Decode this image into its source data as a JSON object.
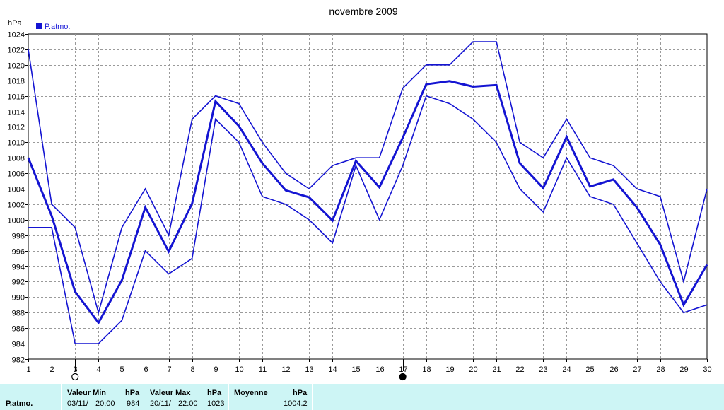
{
  "chart_data": {
    "type": "line",
    "title": "novembre 2009",
    "ylabel": "hPa",
    "xlim": [
      1,
      30
    ],
    "ylim": [
      982,
      1024
    ],
    "y_ticks": [
      982,
      984,
      986,
      988,
      990,
      992,
      994,
      996,
      998,
      1000,
      1002,
      1004,
      1006,
      1008,
      1010,
      1012,
      1014,
      1016,
      1018,
      1020,
      1022,
      1024
    ],
    "x_ticks": [
      1,
      2,
      3,
      4,
      5,
      6,
      7,
      8,
      9,
      10,
      11,
      12,
      13,
      14,
      15,
      16,
      17,
      18,
      19,
      20,
      21,
      22,
      23,
      24,
      25,
      26,
      27,
      28,
      29,
      30
    ],
    "grid": true,
    "legend": {
      "label": "P.atmo.",
      "position": "top-left"
    },
    "color": "#1414d2",
    "series": [
      {
        "name": "P.atmo.",
        "role": "max",
        "x": [
          1,
          2,
          3,
          4,
          5,
          6,
          7,
          8,
          9,
          10,
          11,
          12,
          13,
          14,
          15,
          16,
          17,
          18,
          19,
          20,
          21,
          22,
          23,
          24,
          25,
          26,
          27,
          28,
          29,
          30
        ],
        "values": [
          1022,
          1002,
          999,
          988,
          999,
          1004,
          998,
          1013,
          1016,
          1015,
          1010,
          1006,
          1004,
          1007,
          1008,
          1008,
          1017,
          1020,
          1020,
          1023,
          1023,
          1010,
          1008,
          1013,
          1008,
          1007,
          1004,
          1003,
          992,
          1004
        ]
      },
      {
        "name": "P.atmo.",
        "role": "mean",
        "x": [
          1,
          2,
          3,
          4,
          5,
          6,
          7,
          8,
          9,
          10,
          11,
          12,
          13,
          14,
          15,
          16,
          17,
          18,
          19,
          20,
          21,
          22,
          23,
          24,
          25,
          26,
          27,
          28,
          29,
          30
        ],
        "values": [
          1008,
          1000.5,
          990.7,
          986.7,
          992.2,
          1001.6,
          995.9,
          1002.1,
          1015.3,
          1012.1,
          1007.3,
          1003.8,
          1002.9,
          999.9,
          1007.6,
          1004.2,
          1010.6,
          1017.5,
          1017.9,
          1017.2,
          1017.4,
          1007.3,
          1004.1,
          1010.7,
          1004.3,
          1005.2,
          1001.6,
          996.8,
          989,
          994.2
        ]
      },
      {
        "name": "P.atmo.",
        "role": "min",
        "x": [
          1,
          2,
          3,
          4,
          5,
          6,
          7,
          8,
          9,
          10,
          11,
          12,
          13,
          14,
          15,
          16,
          17,
          18,
          19,
          20,
          21,
          22,
          23,
          24,
          25,
          26,
          27,
          28,
          29,
          30
        ],
        "values": [
          999,
          999,
          984,
          984,
          987,
          996,
          993,
          995,
          1013,
          1010,
          1003,
          1002,
          1000,
          997,
          1007,
          1000,
          1007,
          1016,
          1015,
          1013,
          1010,
          1004,
          1001,
          1008,
          1003,
          1002,
          997,
          992,
          988,
          989
        ]
      }
    ],
    "moon_phases": [
      {
        "day": 3,
        "phase": "full-moon"
      },
      {
        "day": 17,
        "phase": "new-moon"
      }
    ]
  },
  "stats": {
    "row_label": "P.atmo.",
    "min_header": "Valeur Min",
    "min_unit": "hPa",
    "min_date": "03/11/",
    "min_time": "20:00",
    "min_value": "984",
    "max_header": "Valeur Max",
    "max_unit": "hPa",
    "max_date": "20/11/",
    "max_time": "22:00",
    "max_value": "1023",
    "avg_header": "Moyenne",
    "avg_unit": "hPa",
    "avg_value": "1004.2"
  }
}
